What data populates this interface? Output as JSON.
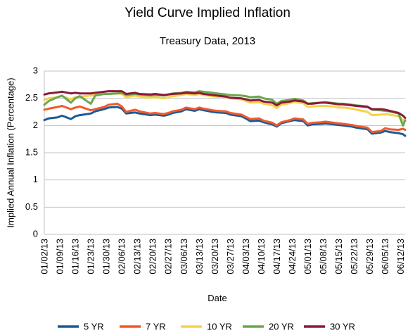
{
  "chart_data": {
    "type": "line",
    "title": "Yield Curve Implied Inflation",
    "subtitle": "Treasury Data, 2013",
    "xlabel": "Date",
    "ylabel": "Implied Annual Inflation (Percentage)",
    "ylim": [
      0,
      3
    ],
    "y_ticks": [
      "0",
      "0.5",
      "1",
      "1.5",
      "2",
      "2.5",
      "3"
    ],
    "grid": "horizontal",
    "legend_position": "bottom",
    "x_tick_labels": [
      "01/02/13",
      "01/09/13",
      "01/16/13",
      "01/23/13",
      "01/30/13",
      "02/06/13",
      "02/13/13",
      "02/20/13",
      "02/27/13",
      "03/06/13",
      "03/13/13",
      "03/20/13",
      "03/27/13",
      "04/03/13",
      "04/10/13",
      "04/17/13",
      "04/24/13",
      "05/01/13",
      "05/08/13",
      "05/15/13",
      "05/22/13",
      "05/29/13",
      "06/05/13",
      "06/12/13"
    ],
    "x": [
      "01/02/13",
      "01/04/13",
      "01/08/13",
      "01/10/13",
      "01/14/13",
      "01/16/13",
      "01/18/13",
      "01/23/13",
      "01/25/13",
      "01/29/13",
      "01/31/13",
      "02/04/13",
      "02/06/13",
      "02/08/13",
      "02/12/13",
      "02/14/13",
      "02/19/13",
      "02/21/13",
      "02/25/13",
      "02/27/13",
      "03/01/13",
      "03/05/13",
      "03/07/13",
      "03/11/13",
      "03/13/13",
      "03/15/13",
      "03/19/13",
      "03/21/13",
      "03/25/13",
      "03/27/13",
      "04/01/13",
      "04/03/13",
      "04/05/13",
      "04/09/13",
      "04/11/13",
      "04/15/13",
      "04/17/13",
      "04/19/13",
      "04/23/13",
      "04/25/13",
      "04/29/13",
      "05/01/13",
      "05/03/13",
      "05/07/13",
      "05/09/13",
      "05/13/13",
      "05/15/13",
      "05/17/13",
      "05/21/13",
      "05/23/13",
      "05/28/13",
      "05/30/13",
      "06/03/13",
      "06/05/13",
      "06/07/13",
      "06/11/13",
      "06/13/13",
      "06/14/13"
    ],
    "series": [
      {
        "name": "5 YR",
        "color": "#1c5a96",
        "values": [
          2.1,
          2.13,
          2.15,
          2.18,
          2.12,
          2.17,
          2.19,
          2.22,
          2.26,
          2.3,
          2.33,
          2.34,
          2.31,
          2.22,
          2.24,
          2.22,
          2.19,
          2.2,
          2.18,
          2.2,
          2.23,
          2.26,
          2.3,
          2.27,
          2.3,
          2.28,
          2.25,
          2.24,
          2.23,
          2.2,
          2.17,
          2.13,
          2.08,
          2.09,
          2.06,
          2.02,
          1.98,
          2.04,
          2.08,
          2.1,
          2.08,
          2.0,
          2.02,
          2.03,
          2.04,
          2.02,
          2.01,
          2.0,
          1.98,
          1.96,
          1.93,
          1.85,
          1.87,
          1.9,
          1.88,
          1.86,
          1.84,
          1.81
        ]
      },
      {
        "name": "7 YR",
        "color": "#f2592a",
        "values": [
          2.29,
          2.31,
          2.34,
          2.36,
          2.3,
          2.33,
          2.35,
          2.28,
          2.3,
          2.34,
          2.38,
          2.4,
          2.35,
          2.25,
          2.29,
          2.26,
          2.22,
          2.23,
          2.21,
          2.23,
          2.26,
          2.29,
          2.33,
          2.3,
          2.33,
          2.31,
          2.28,
          2.27,
          2.26,
          2.23,
          2.2,
          2.16,
          2.12,
          2.13,
          2.09,
          2.05,
          2.0,
          2.06,
          2.1,
          2.13,
          2.11,
          2.03,
          2.05,
          2.06,
          2.07,
          2.05,
          2.04,
          2.03,
          2.01,
          1.99,
          1.96,
          1.88,
          1.9,
          1.95,
          1.93,
          1.92,
          1.94,
          1.92
        ]
      },
      {
        "name": "10 YR",
        "color": "#f7d24a",
        "values": [
          2.47,
          2.5,
          2.52,
          2.54,
          2.48,
          2.52,
          2.53,
          2.55,
          2.56,
          2.58,
          2.58,
          2.59,
          2.58,
          2.52,
          2.55,
          2.53,
          2.51,
          2.52,
          2.5,
          2.52,
          2.54,
          2.56,
          2.58,
          2.56,
          2.58,
          2.56,
          2.54,
          2.53,
          2.52,
          2.5,
          2.48,
          2.45,
          2.42,
          2.43,
          2.4,
          2.37,
          2.32,
          2.38,
          2.41,
          2.43,
          2.41,
          2.34,
          2.35,
          2.36,
          2.36,
          2.35,
          2.33,
          2.33,
          2.31,
          2.29,
          2.25,
          2.19,
          2.2,
          2.21,
          2.2,
          2.17,
          2.1,
          2.08
        ]
      },
      {
        "name": "20 YR",
        "color": "#6aa84f",
        "values": [
          2.38,
          2.45,
          2.52,
          2.55,
          2.42,
          2.5,
          2.54,
          2.4,
          2.55,
          2.58,
          2.58,
          2.59,
          2.6,
          2.56,
          2.58,
          2.57,
          2.55,
          2.56,
          2.55,
          2.57,
          2.59,
          2.6,
          2.62,
          2.61,
          2.63,
          2.62,
          2.6,
          2.59,
          2.57,
          2.56,
          2.55,
          2.54,
          2.52,
          2.53,
          2.5,
          2.47,
          2.4,
          2.45,
          2.47,
          2.49,
          2.46,
          2.4,
          2.41,
          2.42,
          2.43,
          2.41,
          2.4,
          2.4,
          2.38,
          2.37,
          2.35,
          2.29,
          2.28,
          2.27,
          2.26,
          2.22,
          2.0,
          2.1
        ]
      },
      {
        "name": "30 YR",
        "color": "#8b1a3a",
        "values": [
          2.57,
          2.59,
          2.61,
          2.62,
          2.59,
          2.6,
          2.59,
          2.59,
          2.6,
          2.62,
          2.63,
          2.63,
          2.63,
          2.58,
          2.6,
          2.58,
          2.57,
          2.58,
          2.56,
          2.57,
          2.58,
          2.59,
          2.6,
          2.59,
          2.6,
          2.58,
          2.56,
          2.55,
          2.53,
          2.51,
          2.5,
          2.48,
          2.46,
          2.47,
          2.44,
          2.42,
          2.37,
          2.42,
          2.44,
          2.46,
          2.44,
          2.4,
          2.4,
          2.42,
          2.42,
          2.4,
          2.39,
          2.39,
          2.37,
          2.36,
          2.34,
          2.3,
          2.3,
          2.29,
          2.27,
          2.23,
          2.18,
          2.14
        ]
      }
    ]
  }
}
